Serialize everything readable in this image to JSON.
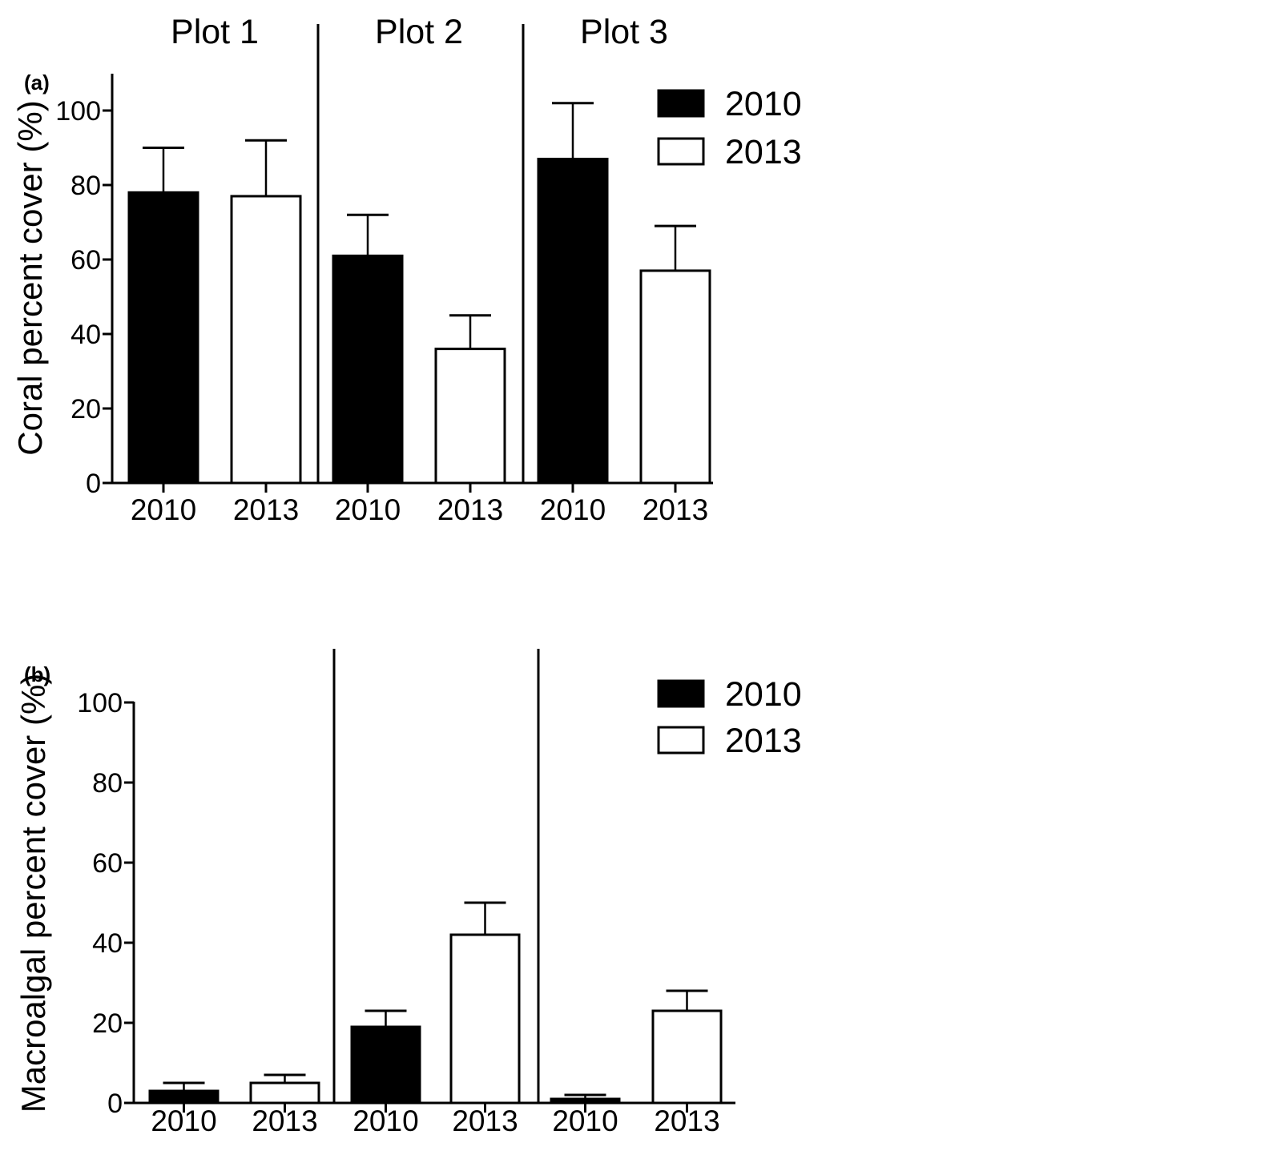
{
  "figure": {
    "background": "#ffffff",
    "ink_color": "#000000"
  },
  "chart_data": [
    {
      "type": "bar",
      "panel_label": "(a)",
      "ylabel": "Coral percent cover (%)",
      "group_headers": [
        "Plot 1",
        "Plot 2",
        "Plot 3"
      ],
      "categories": [
        "2010",
        "2013",
        "2010",
        "2013",
        "2010",
        "2013"
      ],
      "series": [
        {
          "name": "2010",
          "fill": "#000000",
          "values": [
            78,
            61,
            87
          ],
          "error_up": [
            12,
            11,
            15
          ]
        },
        {
          "name": "2013",
          "fill": "#ffffff",
          "values": [
            77,
            36,
            57
          ],
          "error_up": [
            15,
            9,
            12
          ]
        }
      ],
      "yticks": [
        0,
        20,
        40,
        60,
        80,
        100
      ],
      "ylim": [
        0,
        110
      ],
      "grid": false,
      "legend_position": "top-right",
      "legend": [
        {
          "label": "2010",
          "fill": "#000000"
        },
        {
          "label": "2013",
          "fill": "#ffffff"
        }
      ]
    },
    {
      "type": "bar",
      "panel_label": "(b)",
      "ylabel": "Macroalgal percent cover (%)",
      "group_headers": [],
      "categories": [
        "2010",
        "2013",
        "2010",
        "2013",
        "2010",
        "2013"
      ],
      "series": [
        {
          "name": "2010",
          "fill": "#000000",
          "values": [
            3,
            19,
            1
          ],
          "error_up": [
            2,
            4,
            1
          ]
        },
        {
          "name": "2013",
          "fill": "#ffffff",
          "values": [
            5,
            42,
            23
          ],
          "error_up": [
            2,
            8,
            5
          ]
        }
      ],
      "yticks": [
        0,
        20,
        40,
        60,
        80,
        100
      ],
      "ylim": [
        0,
        100
      ],
      "grid": false,
      "legend_position": "top-right",
      "legend": [
        {
          "label": "2010",
          "fill": "#000000"
        },
        {
          "label": "2013",
          "fill": "#ffffff"
        }
      ]
    }
  ]
}
